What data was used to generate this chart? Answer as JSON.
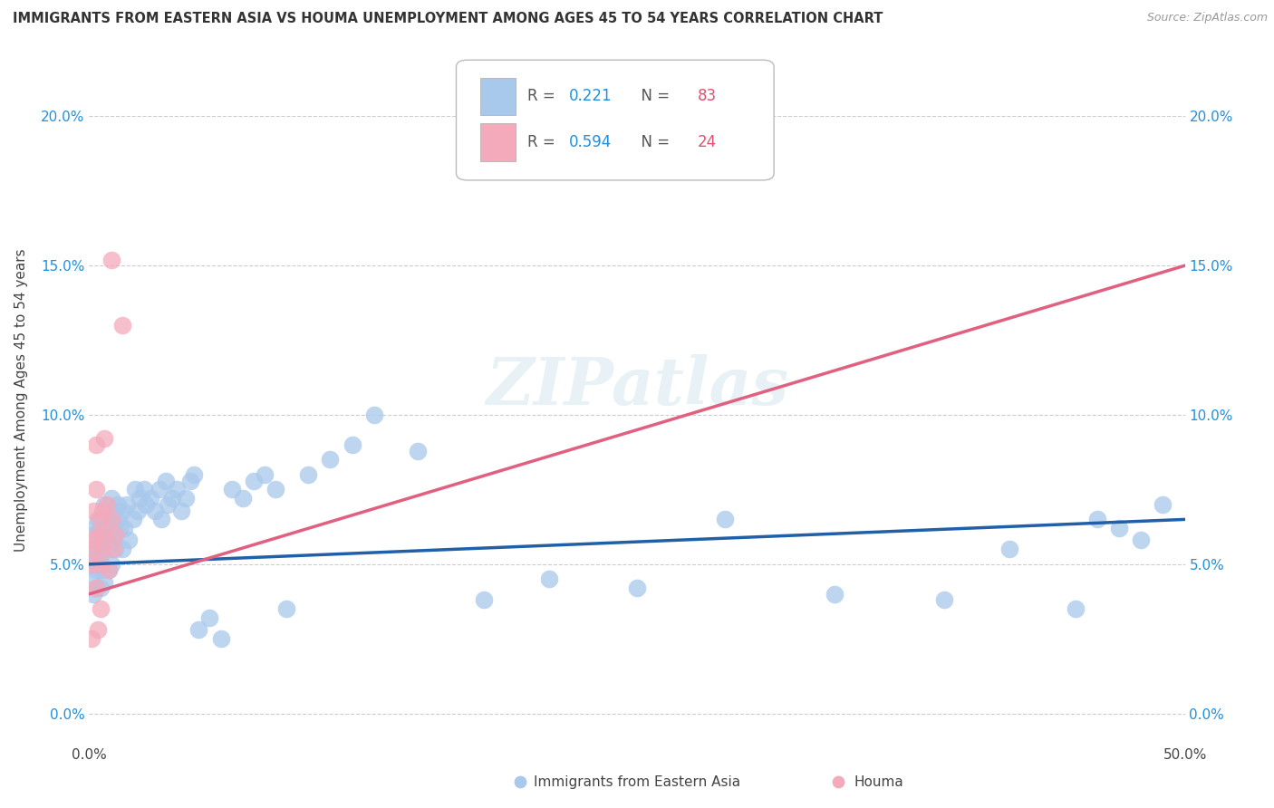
{
  "title": "IMMIGRANTS FROM EASTERN ASIA VS HOUMA UNEMPLOYMENT AMONG AGES 45 TO 54 YEARS CORRELATION CHART",
  "source": "Source: ZipAtlas.com",
  "ylabel": "Unemployment Among Ages 45 to 54 years",
  "xlim": [
    0.0,
    0.5
  ],
  "ylim": [
    -0.01,
    0.22
  ],
  "yticks": [
    0.0,
    0.05,
    0.1,
    0.15,
    0.2
  ],
  "ytick_labels": [
    "0.0%",
    "5.0%",
    "10.0%",
    "15.0%",
    "20.0%"
  ],
  "xticks": [
    0.0,
    0.5
  ],
  "xtick_labels": [
    "0.0%",
    "50.0%"
  ],
  "blue_R": 0.221,
  "blue_N": 83,
  "pink_R": 0.594,
  "pink_N": 24,
  "blue_color": "#A8C8EC",
  "pink_color": "#F4AABB",
  "blue_line_color": "#2060A8",
  "pink_line_color": "#E06080",
  "legend_R_color": "#2090DD",
  "legend_N_color": "#E05070",
  "watermark": "ZIPatlas",
  "blue_scatter_x": [
    0.001,
    0.001,
    0.002,
    0.002,
    0.002,
    0.003,
    0.003,
    0.003,
    0.003,
    0.004,
    0.004,
    0.004,
    0.005,
    0.005,
    0.005,
    0.006,
    0.006,
    0.007,
    0.007,
    0.007,
    0.008,
    0.008,
    0.009,
    0.009,
    0.01,
    0.01,
    0.01,
    0.011,
    0.011,
    0.012,
    0.012,
    0.013,
    0.013,
    0.014,
    0.015,
    0.015,
    0.016,
    0.017,
    0.018,
    0.02,
    0.021,
    0.022,
    0.023,
    0.025,
    0.026,
    0.028,
    0.03,
    0.032,
    0.033,
    0.035,
    0.036,
    0.038,
    0.04,
    0.042,
    0.044,
    0.046,
    0.048,
    0.05,
    0.055,
    0.06,
    0.065,
    0.07,
    0.075,
    0.08,
    0.085,
    0.09,
    0.1,
    0.11,
    0.12,
    0.13,
    0.15,
    0.18,
    0.21,
    0.25,
    0.29,
    0.34,
    0.39,
    0.42,
    0.45,
    0.46,
    0.47,
    0.48,
    0.49
  ],
  "blue_scatter_y": [
    0.05,
    0.045,
    0.052,
    0.04,
    0.06,
    0.048,
    0.055,
    0.042,
    0.063,
    0.05,
    0.057,
    0.065,
    0.042,
    0.053,
    0.062,
    0.048,
    0.058,
    0.044,
    0.065,
    0.07,
    0.055,
    0.062,
    0.048,
    0.058,
    0.05,
    0.065,
    0.072,
    0.058,
    0.068,
    0.06,
    0.055,
    0.065,
    0.07,
    0.062,
    0.055,
    0.068,
    0.062,
    0.07,
    0.058,
    0.065,
    0.075,
    0.068,
    0.072,
    0.075,
    0.07,
    0.072,
    0.068,
    0.075,
    0.065,
    0.078,
    0.07,
    0.072,
    0.075,
    0.068,
    0.072,
    0.078,
    0.08,
    0.028,
    0.032,
    0.025,
    0.075,
    0.072,
    0.078,
    0.08,
    0.075,
    0.035,
    0.08,
    0.085,
    0.09,
    0.1,
    0.088,
    0.038,
    0.045,
    0.042,
    0.065,
    0.04,
    0.038,
    0.055,
    0.035,
    0.065,
    0.062,
    0.058,
    0.07
  ],
  "pink_scatter_x": [
    0.001,
    0.001,
    0.002,
    0.002,
    0.002,
    0.003,
    0.003,
    0.003,
    0.004,
    0.004,
    0.005,
    0.005,
    0.005,
    0.006,
    0.006,
    0.007,
    0.007,
    0.008,
    0.009,
    0.01,
    0.01,
    0.011,
    0.012,
    0.015
  ],
  "pink_scatter_y": [
    0.05,
    0.025,
    0.058,
    0.068,
    0.055,
    0.042,
    0.075,
    0.09,
    0.06,
    0.028,
    0.05,
    0.065,
    0.035,
    0.055,
    0.068,
    0.06,
    0.092,
    0.07,
    0.048,
    0.152,
    0.065,
    0.055,
    0.06,
    0.13
  ],
  "pink_line_x0": 0.0,
  "pink_line_y0": 0.04,
  "pink_line_x1": 0.5,
  "pink_line_y1": 0.15,
  "blue_line_x0": 0.0,
  "blue_line_y0": 0.05,
  "blue_line_x1": 0.5,
  "blue_line_y1": 0.065
}
